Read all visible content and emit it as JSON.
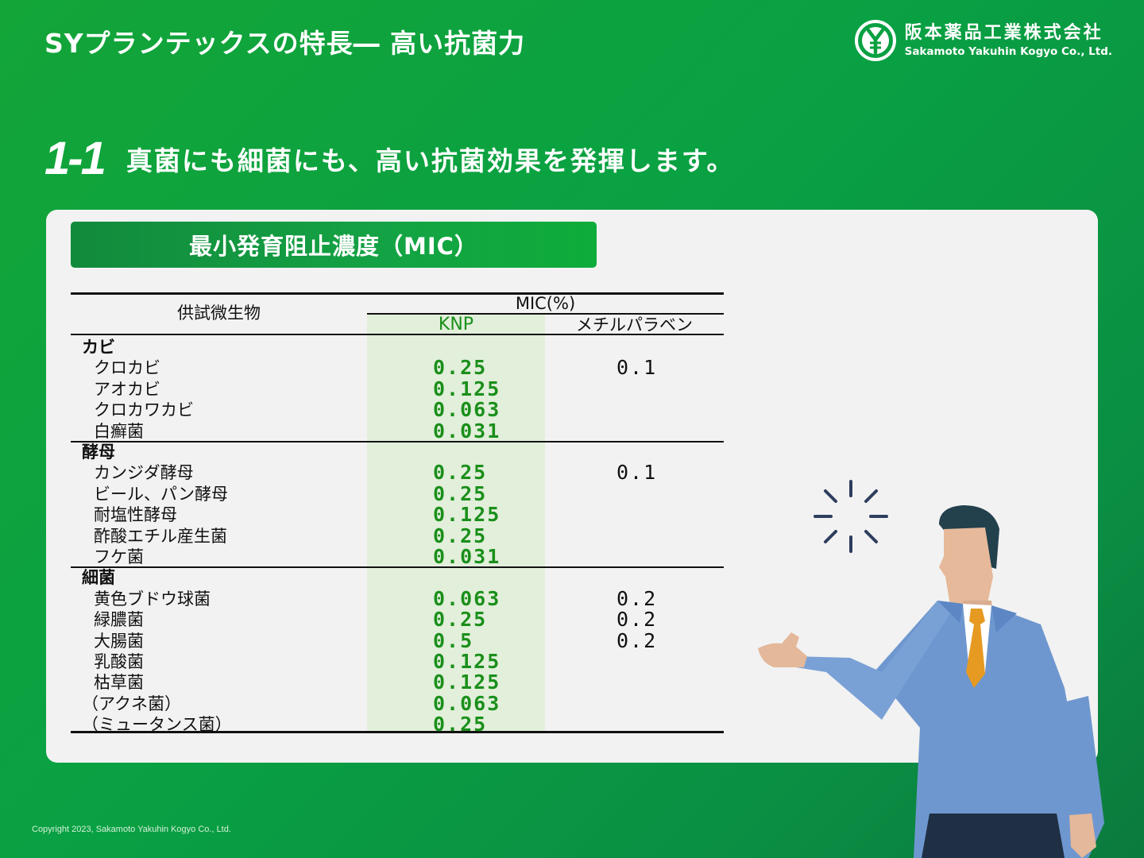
{
  "header": {
    "title": "SYプランテックスの特長― 高い抗菌力",
    "company_jp": "阪本薬品工業株式会社",
    "company_en": "Sakamoto Yakuhin Kogyo Co., Ltd.",
    "logo_icon": "sy-yen-logo-icon"
  },
  "headline": {
    "number": "1-1",
    "text": "真菌にも細菌にも、高い抗菌効果を発揮します。"
  },
  "section": {
    "title": "最小発育阻止濃度（MIC）"
  },
  "table": {
    "header": {
      "organism": "供試微生物",
      "mic": "MIC(%)",
      "knp": "KNP",
      "paraben": "メチルパラベン"
    },
    "colors": {
      "knp_text": "#1a8f1a",
      "knp_bg": "#e2efdb"
    },
    "groups": [
      {
        "name": "カビ",
        "rows": [
          {
            "organism": "クロカビ",
            "knp": "0.25",
            "paraben": "0.1"
          },
          {
            "organism": "アオカビ",
            "knp": "0.125",
            "paraben": ""
          },
          {
            "organism": "クロカワカビ",
            "knp": "0.063",
            "paraben": ""
          },
          {
            "organism": "白癬菌",
            "knp": "0.031",
            "paraben": ""
          }
        ]
      },
      {
        "name": "酵母",
        "rows": [
          {
            "organism": "カンジダ酵母",
            "knp": "0.25",
            "paraben": "0.1"
          },
          {
            "organism": "ビール、パン酵母",
            "knp": "0.25",
            "paraben": ""
          },
          {
            "organism": "耐塩性酵母",
            "knp": "0.125",
            "paraben": ""
          },
          {
            "organism": "酢酸エチル産生菌",
            "knp": "0.25",
            "paraben": ""
          },
          {
            "organism": "フケ菌",
            "knp": "0.031",
            "paraben": ""
          }
        ]
      },
      {
        "name": "細菌",
        "rows": [
          {
            "organism": "黄色ブドウ球菌",
            "knp": "0.063",
            "paraben": "0.2"
          },
          {
            "organism": "緑膿菌",
            "knp": "0.25",
            "paraben": "0.2"
          },
          {
            "organism": "大腸菌",
            "knp": "0.5",
            "paraben": "0.2"
          },
          {
            "organism": "乳酸菌",
            "knp": "0.125",
            "paraben": ""
          },
          {
            "organism": "枯草菌",
            "knp": "0.125",
            "paraben": ""
          },
          {
            "organism": "（アクネ菌）",
            "knp": "0.063",
            "paraben": ""
          },
          {
            "organism": "（ミュータンス菌）",
            "knp": "0.25",
            "paraben": ""
          }
        ]
      }
    ]
  },
  "illustration": {
    "figure_icon": "businessman-presenting-icon",
    "spark_icon": "idea-spark-icon"
  },
  "footer": {
    "copyright": "Copyright 2023, Sakamoto Yakuhin Kogyo Co., Ltd."
  }
}
